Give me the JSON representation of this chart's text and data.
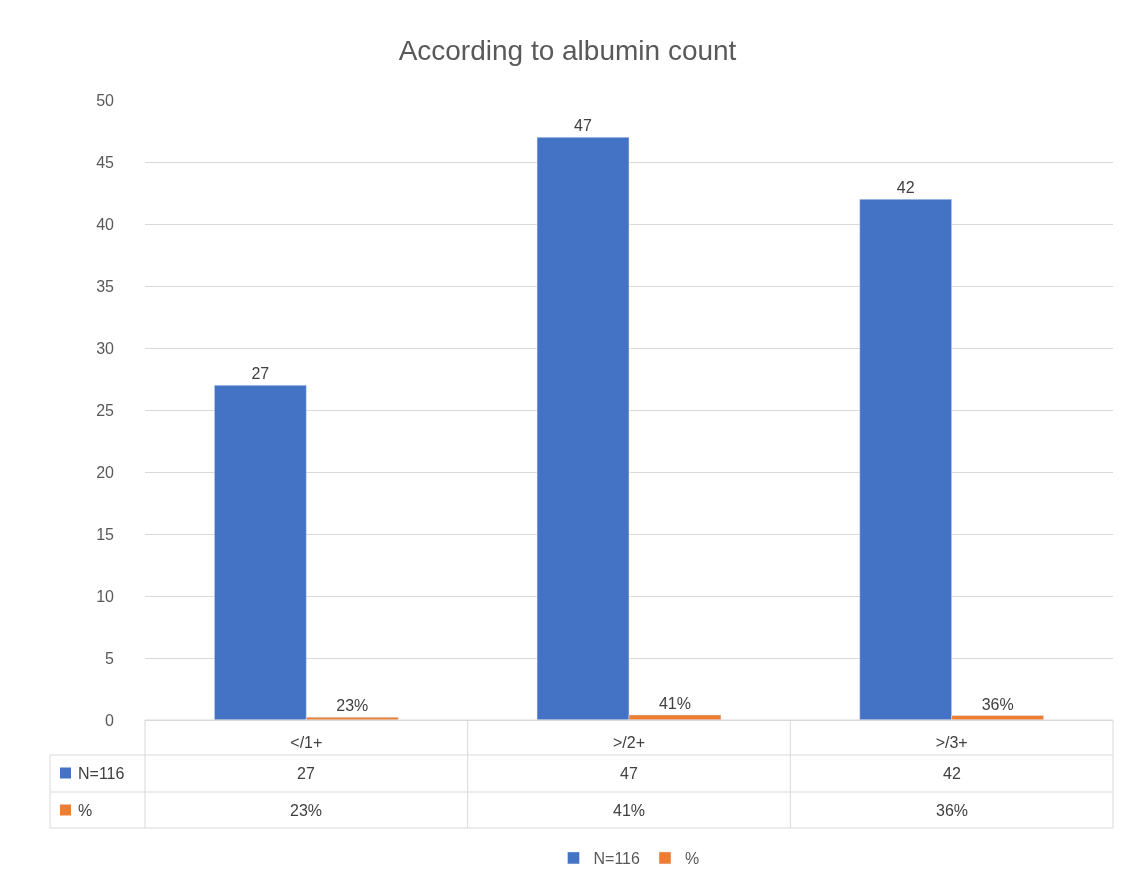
{
  "chart_data": {
    "type": "bar",
    "title": "According to albumin count",
    "categories": [
      "</1+",
      ">/2+",
      ">/3+"
    ],
    "series": [
      {
        "name": "N=116",
        "color": "#4472c4",
        "values": [
          27,
          47,
          42
        ],
        "value_labels": [
          "27",
          "47",
          "42"
        ]
      },
      {
        "name": "%",
        "color": "#ed7d31",
        "values": [
          0.23,
          0.41,
          0.36
        ],
        "value_labels": [
          "23%",
          "41%",
          "36%"
        ]
      }
    ],
    "ylim": [
      0,
      50
    ],
    "yticks": [
      0,
      5,
      10,
      15,
      20,
      25,
      30,
      35,
      40,
      45,
      50
    ],
    "grid": "y",
    "legend": "bottom"
  }
}
